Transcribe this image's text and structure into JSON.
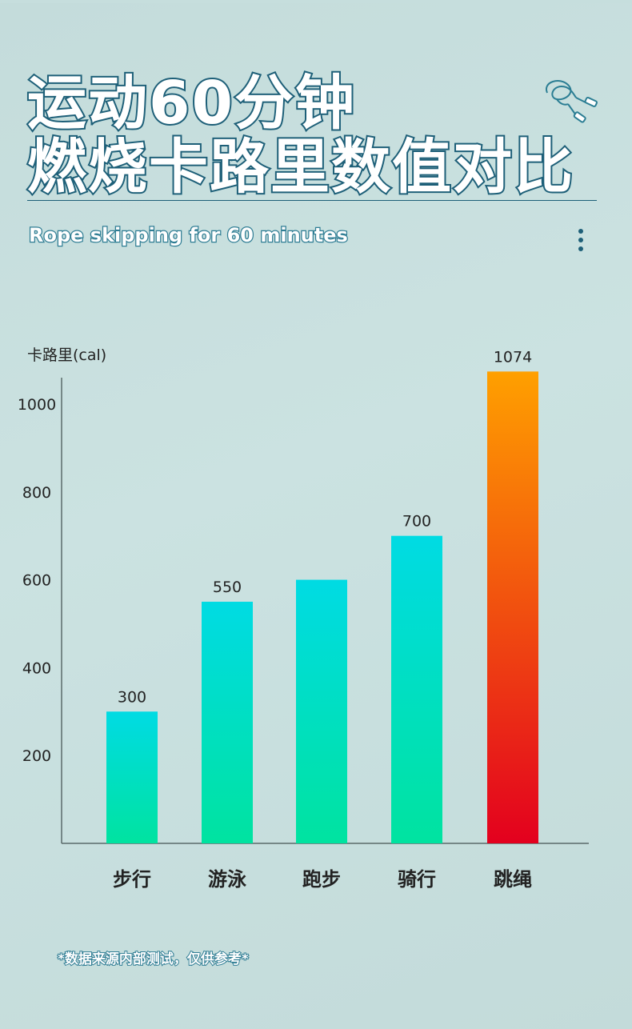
{
  "title": {
    "line1": "运动60分钟",
    "line2": "燃烧卡路里数值对比"
  },
  "subtitle": "Rope skipping for 60 minutes",
  "footnote": "*数据来源内部测试，仅供参考*",
  "icons": {
    "decoration": "jump-rope-icon",
    "menu": "vertical-dots-icon"
  },
  "colors": {
    "title_stroke": "#1d5f78",
    "bar_cyan_top": "#00dbe3",
    "bar_green_bottom": "#00e3a0",
    "bar_orange_top": "#ffa000",
    "bar_red_bottom": "#e3001e"
  },
  "chart_data": {
    "type": "bar",
    "ylabel": "卡路里(cal)",
    "xlabel": "",
    "categories": [
      "步行",
      "游泳",
      "跑步",
      "骑行",
      "跳绳"
    ],
    "values": [
      300,
      550,
      600,
      700,
      1074
    ],
    "data_labels": [
      "300",
      "550",
      "",
      "700",
      "1074"
    ],
    "y_ticks": [
      200,
      400,
      600,
      800,
      1000
    ],
    "ylim": [
      0,
      1060
    ],
    "grid": false,
    "highlight_category": "跳绳"
  }
}
